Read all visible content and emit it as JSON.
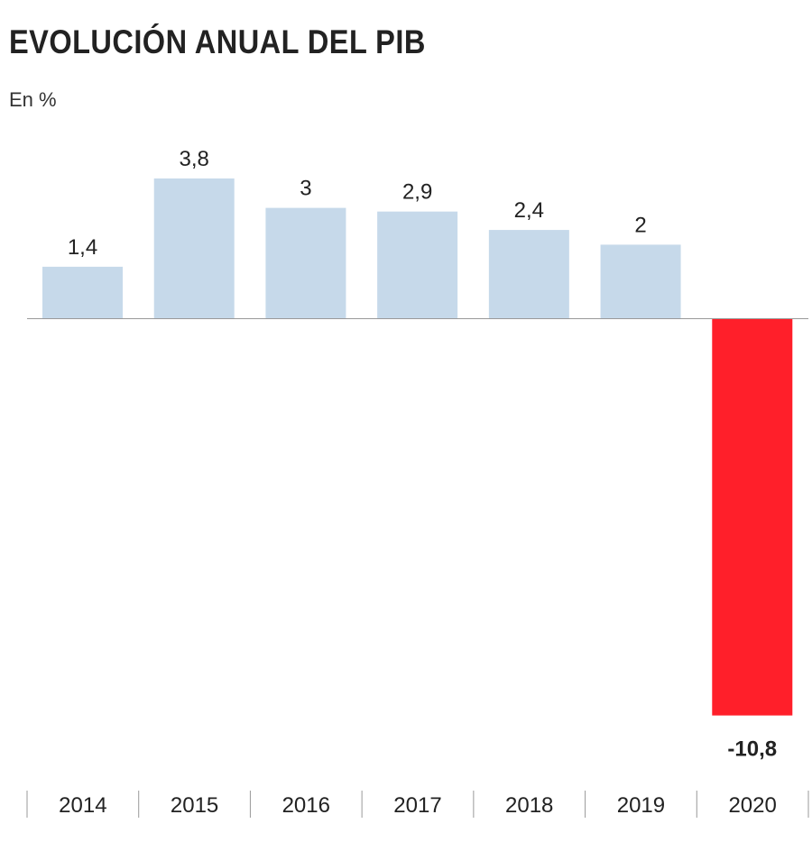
{
  "chart_data": {
    "type": "bar",
    "title": "EVOLUCIÓN ANUAL DEL PIB",
    "subtitle": "En %",
    "categories": [
      "2014",
      "2015",
      "2016",
      "2017",
      "2018",
      "2019",
      "2020"
    ],
    "values": [
      1.4,
      3.8,
      3,
      2.9,
      2.4,
      2,
      -10.8
    ],
    "value_labels": [
      "1,4",
      "3,8",
      "3",
      "2,9",
      "2,4",
      "2",
      "-10,8"
    ],
    "ylim": [
      -10.8,
      3.8
    ],
    "grid": false,
    "legend": "none",
    "colors": {
      "positive": "#c6d9ea",
      "negative": "#ff1f2a",
      "baseline": "#999999",
      "tick": "#999999"
    }
  }
}
